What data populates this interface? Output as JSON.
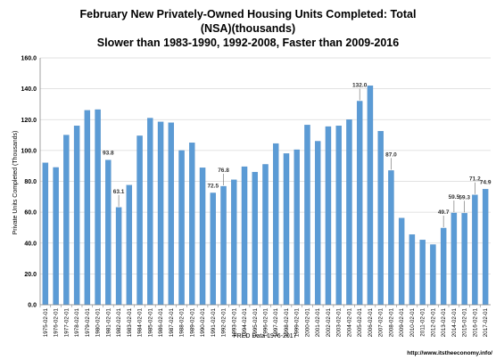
{
  "chart_data": {
    "type": "bar",
    "title_lines": [
      "February New Privately-Owned Housing Units Completed: Total",
      "(NSA)(thousands)",
      "Slower than 1983-1990, 1992-2008, Faster than 2009-2016"
    ],
    "ylabel": "Private Units Completed (Thousands)",
    "xlabel": "FRED Data 1976-2017",
    "source": "http://www.itstheeconomy.info/",
    "ylim": [
      0,
      160
    ],
    "yticks": [
      "0.0",
      "20.0",
      "40.0",
      "60.0",
      "80.0",
      "100.0",
      "120.0",
      "140.0",
      "160.0"
    ],
    "grid": true,
    "colors": {
      "bar": "#5b9bd5",
      "bar_edge": "#4a86c0",
      "grid": "#d9d9d9",
      "axis": "#888888"
    },
    "categories": [
      "1975-02-01",
      "1976-02-01",
      "1977-02-01",
      "1978-02-01",
      "1979-02-01",
      "1980-02-01",
      "1981-02-01",
      "1982-02-01",
      "1983-02-01",
      "1984-02-01",
      "1985-02-01",
      "1986-02-01",
      "1987-02-01",
      "1988-02-01",
      "1989-02-01",
      "1990-02-01",
      "1991-02-01",
      "1992-02-01",
      "1993-02-01",
      "1994-02-01",
      "1995-02-01",
      "1996-02-01",
      "1997-02-01",
      "1998-02-01",
      "1999-02-01",
      "2000-02-01",
      "2001-02-01",
      "2002-02-01",
      "2003-02-01",
      "2004-02-01",
      "2005-02-01",
      "2006-02-01",
      "2007-02-01",
      "2008-02-01",
      "2009-02-01",
      "2010-02-01",
      "2011-02-01",
      "2012-02-01",
      "2013-02-01",
      "2014-02-01",
      "2015-02-01",
      "2016-02-01",
      "2017-02-01"
    ],
    "values": [
      92.0,
      89.0,
      110.0,
      116.0,
      126.0,
      126.5,
      93.8,
      63.1,
      77.5,
      109.5,
      121.0,
      118.5,
      118.0,
      100.0,
      105.0,
      88.8,
      72.5,
      76.8,
      81.0,
      89.5,
      86.0,
      91.0,
      104.5,
      98.0,
      100.5,
      116.5,
      106.0,
      115.5,
      116.0,
      120.0,
      132.0,
      142.0,
      112.5,
      87.0,
      56.2,
      45.5,
      42.0,
      39.0,
      49.7,
      59.5,
      59.3,
      71.2,
      74.9
    ],
    "annotations": [
      {
        "index": 6,
        "text": "93.8",
        "leader": false
      },
      {
        "index": 7,
        "text": "63.1",
        "leader": true
      },
      {
        "index": 16,
        "text": "72.5",
        "leader": false
      },
      {
        "index": 17,
        "text": "76.8",
        "leader": true
      },
      {
        "index": 30,
        "text": "132.0",
        "leader": true
      },
      {
        "index": 33,
        "text": "87.0",
        "leader": true
      },
      {
        "index": 38,
        "text": "49.7",
        "leader": true
      },
      {
        "index": 39,
        "text": "59.5",
        "leader": true
      },
      {
        "index": 40,
        "text": "59.3",
        "leader": true
      },
      {
        "index": 41,
        "text": "71.2",
        "leader": true
      },
      {
        "index": 42,
        "text": "74.9",
        "leader": false
      }
    ]
  }
}
